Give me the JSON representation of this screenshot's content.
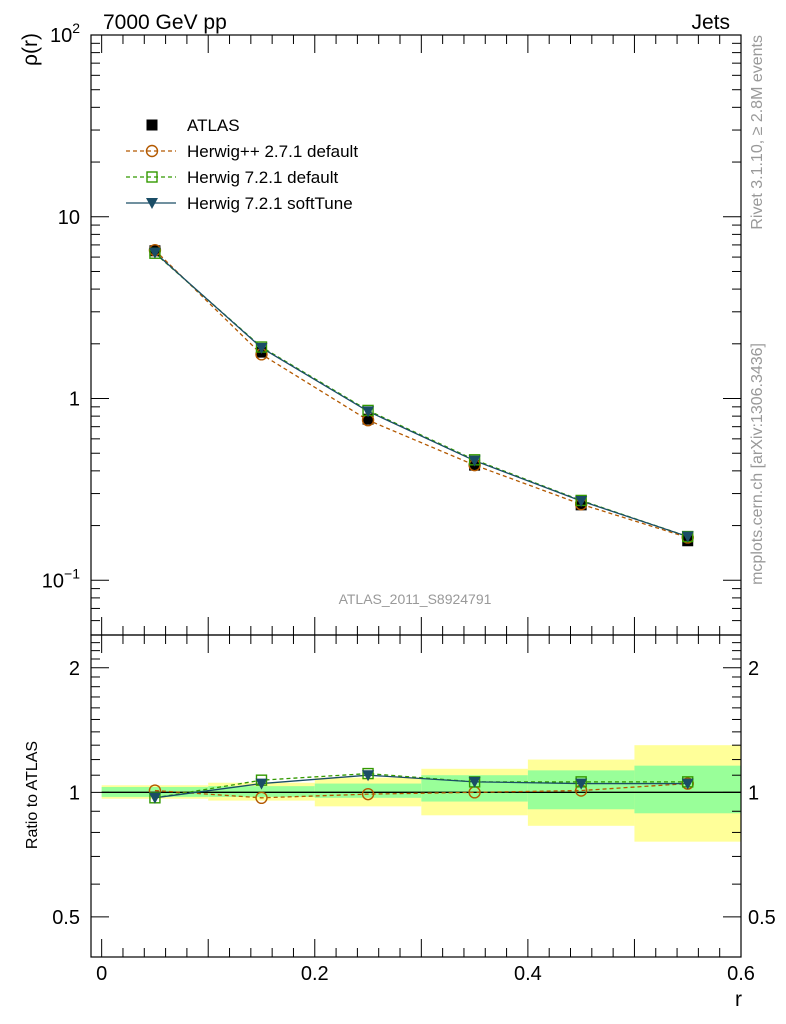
{
  "header": {
    "left": "7000 GeV pp",
    "right": "Jets"
  },
  "side_labels": {
    "rivet": "Rivet 3.1.10, ≥ 2.8M events",
    "mcplots": "mcplots.cern.ch [arXiv:1306.3436]"
  },
  "watermark": "ATLAS_2011_S8924791",
  "colors": {
    "atlas": "#000000",
    "herwigpp": "#b35900",
    "herwig721": "#339900",
    "softtune": "#1a4d66",
    "band_outer": "#ffff99",
    "band_inner": "#99ff99"
  },
  "chart_data": [
    {
      "type": "line",
      "ylabel": "ρ(r)",
      "yscale": "log",
      "ylim": [
        0.05,
        100
      ],
      "yticks": [
        {
          "value": 100,
          "label": "10",
          "sup": "2"
        },
        {
          "value": 10,
          "label": "10",
          "sup": ""
        },
        {
          "value": 1,
          "label": "1",
          "sup": ""
        },
        {
          "value": 0.1,
          "label": "10",
          "sup": "−1"
        }
      ],
      "xlim": [
        -0.01,
        0.6
      ],
      "x": [
        0.05,
        0.15,
        0.25,
        0.35,
        0.45,
        0.55
      ],
      "legend_position": "upper-left",
      "series": [
        {
          "name": "ATLAS",
          "marker": "square-filled",
          "values": [
            6.5,
            1.8,
            0.77,
            0.43,
            0.26,
            0.165
          ]
        },
        {
          "name": "Herwig++ 2.7.1 default",
          "marker": "circle-open",
          "dashed": true,
          "values": [
            6.55,
            1.75,
            0.76,
            0.43,
            0.262,
            0.172
          ]
        },
        {
          "name": "Herwig 7.2.1 default",
          "marker": "square-open",
          "dashed": true,
          "values": [
            6.3,
            1.92,
            0.86,
            0.46,
            0.275,
            0.174
          ]
        },
        {
          "name": "Herwig 7.2.1 softTune",
          "marker": "triangle-down-filled",
          "dashed": false,
          "values": [
            6.35,
            1.9,
            0.85,
            0.455,
            0.273,
            0.174
          ]
        }
      ]
    },
    {
      "type": "line",
      "ylabel": "Ratio to ATLAS",
      "xlabel": "r",
      "yscale": "log",
      "ylim": [
        0.4,
        2.4
      ],
      "yticks": [
        {
          "value": 2,
          "label": "2"
        },
        {
          "value": 1,
          "label": "1"
        },
        {
          "value": 0.5,
          "label": "0.5"
        }
      ],
      "xticks": [
        {
          "value": 0,
          "label": "0"
        },
        {
          "value": 0.2,
          "label": "0.2"
        },
        {
          "value": 0.4,
          "label": "0.4"
        },
        {
          "value": 0.6,
          "label": "0.6"
        }
      ],
      "x": [
        0.05,
        0.15,
        0.25,
        0.35,
        0.45,
        0.55
      ],
      "bins": [
        [
          0.0,
          0.1
        ],
        [
          0.1,
          0.2
        ],
        [
          0.2,
          0.3
        ],
        [
          0.3,
          0.4
        ],
        [
          0.4,
          0.5
        ],
        [
          0.5,
          0.6
        ]
      ],
      "band_outer": [
        [
          0.965,
          1.04
        ],
        [
          0.955,
          1.055
        ],
        [
          0.925,
          1.085
        ],
        [
          0.88,
          1.14
        ],
        [
          0.83,
          1.2
        ],
        [
          0.76,
          1.3
        ]
      ],
      "band_inner": [
        [
          0.975,
          1.03
        ],
        [
          0.975,
          1.035
        ],
        [
          0.97,
          1.05
        ],
        [
          0.95,
          1.1
        ],
        [
          0.91,
          1.13
        ],
        [
          0.89,
          1.16
        ]
      ],
      "series": [
        {
          "name": "Herwig++ 2.7.1 default",
          "values": [
            1.01,
            0.97,
            0.99,
            1.0,
            1.01,
            1.05
          ]
        },
        {
          "name": "Herwig 7.2.1 default",
          "values": [
            0.97,
            1.07,
            1.11,
            1.06,
            1.06,
            1.06
          ]
        },
        {
          "name": "Herwig 7.2.1 softTune",
          "values": [
            0.97,
            1.05,
            1.1,
            1.06,
            1.05,
            1.05
          ]
        }
      ]
    }
  ]
}
